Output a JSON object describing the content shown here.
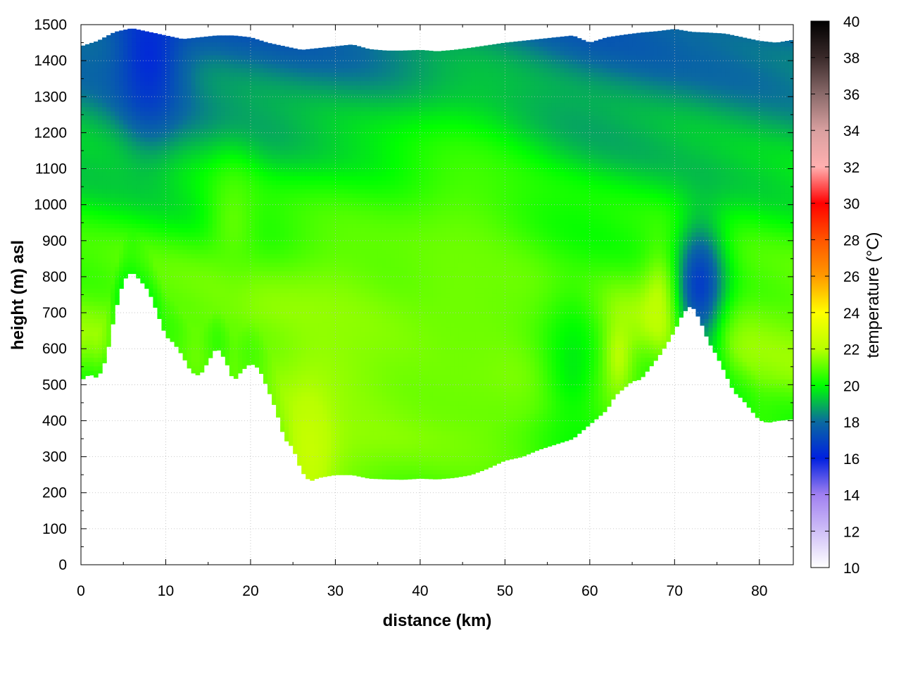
{
  "chart_data": {
    "type": "heatmap",
    "xlabel": "distance (km)",
    "ylabel": "height (m) asl",
    "colorbar_label": "temperature (°C)",
    "xlim": [
      0,
      84
    ],
    "ylim": [
      0,
      1500
    ],
    "zlim": [
      10,
      40
    ],
    "x_ticks": [
      0,
      10,
      20,
      30,
      40,
      50,
      60,
      70,
      80
    ],
    "y_ticks": [
      0,
      100,
      200,
      300,
      400,
      500,
      600,
      700,
      800,
      900,
      1000,
      1100,
      1200,
      1300,
      1400,
      1500
    ],
    "z_ticks": [
      10,
      12,
      14,
      16,
      18,
      20,
      22,
      24,
      26,
      28,
      30,
      32,
      34,
      36,
      38,
      40
    ],
    "grid": true,
    "colorscale": [
      {
        "value": 10,
        "color": "#ffffff"
      },
      {
        "value": 14,
        "color": "#a080f0"
      },
      {
        "value": 16,
        "color": "#0020e0"
      },
      {
        "value": 18,
        "color": "#0a6aa0"
      },
      {
        "value": 20,
        "color": "#00ff00"
      },
      {
        "value": 22,
        "color": "#b8ff00"
      },
      {
        "value": 24,
        "color": "#ffff00"
      },
      {
        "value": 26,
        "color": "#ff9900"
      },
      {
        "value": 28,
        "color": "#ff5500"
      },
      {
        "value": 30,
        "color": "#ff0000"
      },
      {
        "value": 32,
        "color": "#ffb0b0"
      },
      {
        "value": 34,
        "color": "#d9a0a0"
      },
      {
        "value": 36,
        "color": "#8a6a6a"
      },
      {
        "value": 38,
        "color": "#3a2a2a"
      },
      {
        "value": 40,
        "color": "#000000"
      }
    ],
    "terrain_profile": [
      [
        0,
        512
      ],
      [
        1,
        530
      ],
      [
        2,
        518
      ],
      [
        3,
        575
      ],
      [
        4,
        700
      ],
      [
        5,
        790
      ],
      [
        6,
        815
      ],
      [
        7,
        790
      ],
      [
        8,
        760
      ],
      [
        9,
        700
      ],
      [
        10,
        635
      ],
      [
        11,
        615
      ],
      [
        12,
        580
      ],
      [
        13,
        535
      ],
      [
        14,
        525
      ],
      [
        15,
        565
      ],
      [
        16,
        605
      ],
      [
        17,
        570
      ],
      [
        18,
        510
      ],
      [
        19,
        540
      ],
      [
        20,
        560
      ],
      [
        21,
        545
      ],
      [
        22,
        490
      ],
      [
        23,
        430
      ],
      [
        24,
        350
      ],
      [
        25,
        325
      ],
      [
        26,
        260
      ],
      [
        27,
        232
      ],
      [
        28,
        242
      ],
      [
        30,
        250
      ],
      [
        32,
        250
      ],
      [
        34,
        240
      ],
      [
        36,
        238
      ],
      [
        38,
        237
      ],
      [
        40,
        240
      ],
      [
        42,
        238
      ],
      [
        44,
        242
      ],
      [
        46,
        250
      ],
      [
        48,
        268
      ],
      [
        50,
        290
      ],
      [
        52,
        300
      ],
      [
        54,
        320
      ],
      [
        56,
        335
      ],
      [
        58,
        350
      ],
      [
        60,
        390
      ],
      [
        62,
        430
      ],
      [
        63,
        470
      ],
      [
        64,
        490
      ],
      [
        65,
        510
      ],
      [
        66,
        515
      ],
      [
        67,
        545
      ],
      [
        68,
        575
      ],
      [
        69,
        610
      ],
      [
        70,
        650
      ],
      [
        71,
        700
      ],
      [
        72,
        722
      ],
      [
        73,
        680
      ],
      [
        74,
        620
      ],
      [
        75,
        580
      ],
      [
        76,
        530
      ],
      [
        77,
        480
      ],
      [
        78,
        460
      ],
      [
        79,
        430
      ],
      [
        80,
        402
      ],
      [
        81,
        395
      ],
      [
        82,
        400
      ],
      [
        84,
        405
      ]
    ],
    "upper_boundary": [
      [
        0,
        1440
      ],
      [
        2,
        1455
      ],
      [
        4,
        1480
      ],
      [
        6,
        1490
      ],
      [
        8,
        1480
      ],
      [
        10,
        1470
      ],
      [
        12,
        1460
      ],
      [
        14,
        1465
      ],
      [
        16,
        1470
      ],
      [
        18,
        1470
      ],
      [
        20,
        1465
      ],
      [
        22,
        1450
      ],
      [
        24,
        1440
      ],
      [
        26,
        1430
      ],
      [
        28,
        1435
      ],
      [
        30,
        1440
      ],
      [
        32,
        1445
      ],
      [
        34,
        1432
      ],
      [
        36,
        1428
      ],
      [
        38,
        1428
      ],
      [
        40,
        1430
      ],
      [
        42,
        1426
      ],
      [
        44,
        1430
      ],
      [
        46,
        1436
      ],
      [
        48,
        1443
      ],
      [
        50,
        1450
      ],
      [
        52,
        1455
      ],
      [
        54,
        1460
      ],
      [
        56,
        1465
      ],
      [
        58,
        1470
      ],
      [
        60,
        1450
      ],
      [
        62,
        1465
      ],
      [
        64,
        1472
      ],
      [
        66,
        1478
      ],
      [
        68,
        1482
      ],
      [
        70,
        1488
      ],
      [
        72,
        1480
      ],
      [
        74,
        1478
      ],
      [
        76,
        1475
      ],
      [
        78,
        1465
      ],
      [
        80,
        1455
      ],
      [
        82,
        1450
      ],
      [
        84,
        1458
      ]
    ],
    "features": [
      {
        "x": 8,
        "y": 1420,
        "radius_km": 4,
        "value": 16.3
      },
      {
        "x": 30,
        "y": 500,
        "radius_km": 8,
        "value": 21.6
      },
      {
        "x": 27,
        "y": 320,
        "radius_km": 3,
        "value": 22.4
      },
      {
        "x": 45,
        "y": 720,
        "radius_km": 10,
        "value": 21.2
      },
      {
        "x": 63,
        "y": 580,
        "radius_km": 2,
        "value": 22.5
      },
      {
        "x": 69,
        "y": 720,
        "radius_km": 2.5,
        "value": 22.6
      },
      {
        "x": 73,
        "y": 780,
        "radius_km": 3,
        "value": 16.8
      },
      {
        "x": 58,
        "y": 560,
        "radius_km": 4,
        "value": 19.8
      },
      {
        "x": 18,
        "y": 950,
        "radius_km": 3,
        "value": 21.0
      }
    ]
  }
}
